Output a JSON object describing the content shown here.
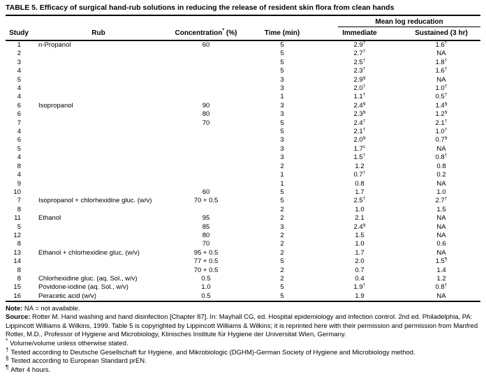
{
  "title": "TABLE 5. Efficacy of surgical hand-rub solutions in reducing the release of resident skin flora from clean hands",
  "table": {
    "group_header": "Mean log reducation",
    "columns": {
      "study": "Study",
      "rub": "Rub",
      "concentration_prefix": "Concentration",
      "concentration_sup": "*",
      "concentration_suffix": "(%)",
      "time": "Time (min)",
      "immediate": "Immediate",
      "sustained": "Sustained (3 hr)"
    },
    "rows": [
      {
        "study": "1",
        "rub": "n-Propanol",
        "conc": "60",
        "time": "5",
        "imm": "2.9",
        "imm_sup": "†",
        "sus": "1.6",
        "sus_sup": "†"
      },
      {
        "study": "2",
        "rub": "",
        "conc": "",
        "time": "5",
        "imm": "2.7",
        "imm_sup": "†",
        "sus": "NA",
        "sus_sup": ""
      },
      {
        "study": "3",
        "rub": "",
        "conc": "",
        "time": "5",
        "imm": "2.5",
        "imm_sup": "†",
        "sus": "1.8",
        "sus_sup": "†"
      },
      {
        "study": "4",
        "rub": "",
        "conc": "",
        "time": "5",
        "imm": "2.3",
        "imm_sup": "†",
        "sus": "1.6",
        "sus_sup": "†"
      },
      {
        "study": "5",
        "rub": "",
        "conc": "",
        "time": "3",
        "imm": "2.9",
        "imm_sup": "§",
        "sus": "NA",
        "sus_sup": ""
      },
      {
        "study": "4",
        "rub": "",
        "conc": "",
        "time": "3",
        "imm": "2.0",
        "imm_sup": "†",
        "sus": "1.0",
        "sus_sup": "†"
      },
      {
        "study": "4",
        "rub": "",
        "conc": "",
        "time": "1",
        "imm": "1.1",
        "imm_sup": "†",
        "sus": "0.5",
        "sus_sup": "†"
      },
      {
        "study": "6",
        "rub": "Isopropanol",
        "conc": "90",
        "time": "3",
        "imm": "2.4",
        "imm_sup": "§",
        "sus": "1.4",
        "sus_sup": "§"
      },
      {
        "study": "6",
        "rub": "",
        "conc": "80",
        "time": "3",
        "imm": "2.3",
        "imm_sup": "§",
        "sus": "1.2",
        "sus_sup": "§"
      },
      {
        "study": "7",
        "rub": "",
        "conc": "70",
        "time": "5",
        "imm": "2.4",
        "imm_sup": "†",
        "sus": "2.1",
        "sus_sup": "†"
      },
      {
        "study": "4",
        "rub": "",
        "conc": "",
        "time": "5",
        "imm": "2.1",
        "imm_sup": "†",
        "sus": "1.0",
        "sus_sup": "†"
      },
      {
        "study": "6",
        "rub": "",
        "conc": "",
        "time": "3",
        "imm": "2.0",
        "imm_sup": "§",
        "sus": "0.7",
        "sus_sup": "§"
      },
      {
        "study": "5",
        "rub": "",
        "conc": "",
        "time": "3",
        "imm": "1.7",
        "imm_sup": "c",
        "sus": "NA",
        "sus_sup": ""
      },
      {
        "study": "4",
        "rub": "",
        "conc": "",
        "time": "3",
        "imm": "1.5",
        "imm_sup": "†",
        "sus": "0.8",
        "sus_sup": "†"
      },
      {
        "study": "8",
        "rub": "",
        "conc": "",
        "time": "2",
        "imm": "1.2",
        "imm_sup": "",
        "sus": "0.8",
        "sus_sup": ""
      },
      {
        "study": "4",
        "rub": "",
        "conc": "",
        "time": "1",
        "imm": "0.7",
        "imm_sup": "†",
        "sus": "0.2",
        "sus_sup": ""
      },
      {
        "study": "9",
        "rub": "",
        "conc": "",
        "time": "1",
        "imm": "0.8",
        "imm_sup": "",
        "sus": "NA",
        "sus_sup": ""
      },
      {
        "study": "10",
        "rub": "",
        "conc": "60",
        "time": "5",
        "imm": "1.7",
        "imm_sup": "",
        "sus": "1.0",
        "sus_sup": ""
      },
      {
        "study": "7",
        "rub": "Isopropanol + chlorhexidine gluc. (w/v)",
        "conc": "70 + 0.5",
        "time": "5",
        "imm": "2.5",
        "imm_sup": "†",
        "sus": "2.7",
        "sus_sup": "†"
      },
      {
        "study": "8",
        "rub": "",
        "conc": "",
        "time": "2",
        "imm": "1.0",
        "imm_sup": "",
        "sus": "1.5",
        "sus_sup": ""
      },
      {
        "study": "11",
        "rub": "Ethanol",
        "conc": "95",
        "time": "2",
        "imm": "2.1",
        "imm_sup": "",
        "sus": "NA",
        "sus_sup": ""
      },
      {
        "study": "5",
        "rub": "",
        "conc": "85",
        "time": "3",
        "imm": "2.4",
        "imm_sup": "§",
        "sus": "NA",
        "sus_sup": ""
      },
      {
        "study": "12",
        "rub": "",
        "conc": "80",
        "time": "2",
        "imm": "1.5",
        "imm_sup": "",
        "sus": "NA",
        "sus_sup": ""
      },
      {
        "study": "8",
        "rub": "",
        "conc": "70",
        "time": "2",
        "imm": "1.0",
        "imm_sup": "",
        "sus": "0.6",
        "sus_sup": ""
      },
      {
        "study": "13",
        "rub": "Ethanol + chlorhexidine gluc. (w/v)",
        "conc": "95 + 0.5",
        "time": "2",
        "imm": "1.7",
        "imm_sup": "",
        "sus": "NA",
        "sus_sup": ""
      },
      {
        "study": "14",
        "rub": "",
        "conc": "77 + 0.5",
        "time": "5",
        "imm": "2.0",
        "imm_sup": "",
        "sus": "1.5",
        "sus_sup": "¶"
      },
      {
        "study": "8",
        "rub": "",
        "conc": "70 + 0.5",
        "time": "2",
        "imm": "0.7",
        "imm_sup": "",
        "sus": "1.4",
        "sus_sup": ""
      },
      {
        "study": "8",
        "rub": "Chlorhexidine gluc. (aq. Sol., w/v)",
        "conc": "0.5",
        "time": "2",
        "imm": "0.4",
        "imm_sup": "",
        "sus": "1.2",
        "sus_sup": ""
      },
      {
        "study": "15",
        "rub": "Povidone-iodine (aq. Sol., w/v)",
        "conc": "1.0",
        "time": "5",
        "imm": "1.9",
        "imm_sup": "†",
        "sus": "0.8",
        "sus_sup": "†"
      },
      {
        "study": "16",
        "rub": "Peracetic acid (w/v)",
        "conc": "0.5",
        "time": "5",
        "imm": "1.9",
        "imm_sup": "",
        "sus": "NA",
        "sus_sup": ""
      }
    ]
  },
  "footer": {
    "note_label": "Note:",
    "note_text": "NA = not available.",
    "source_label": "Source:",
    "source_text": "Rotter M. Hand washing and hand disinfection [Chapter 87]. In: Mayhall CG, ed. Hospital epidemiology and infection control. 2nd ed. Philadelphia, PA: Lippincott Williams & Wilkins, 1999. Table 5 is copyrighted by Lippincott Williams & Wilkins; it is reprinted here with their permission and permission from Manfred Rotler, M.D., Professor of Hygiene and Microbiology, Klinisches Institute für Hygiene der Universitat Wien, Germany.",
    "footnotes": [
      {
        "marker": "*",
        "text": "Volume/volume unless otherwise stated."
      },
      {
        "marker": "†",
        "text": "Tested according to Deutsche Gesellschaft fur Hygiene, and Mikrobiologic (DGHM)-German Society of Hygiene and Microbiology method."
      },
      {
        "marker": "§",
        "text": "Tested according to European Standard prEN."
      },
      {
        "marker": "¶",
        "text": "After 4 hours."
      }
    ]
  }
}
